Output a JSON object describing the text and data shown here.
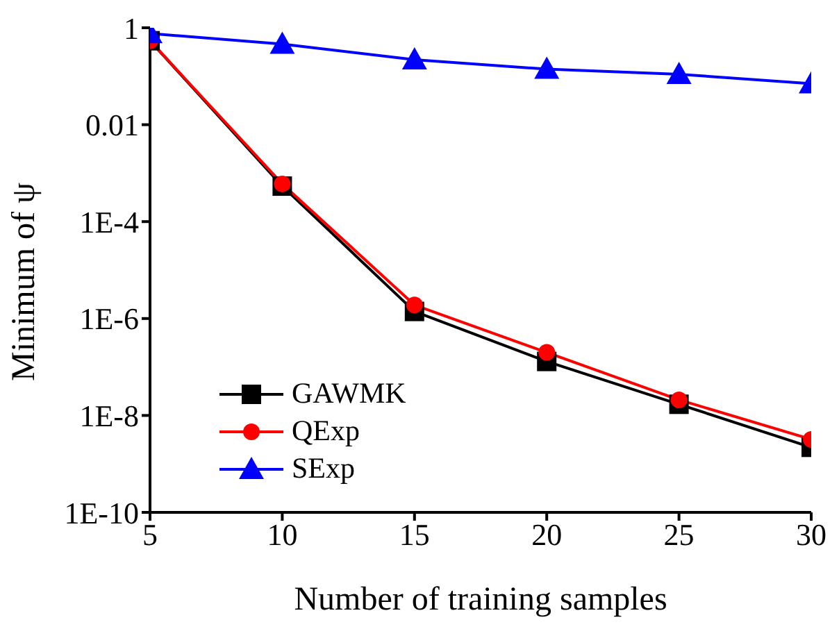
{
  "chart_data": {
    "type": "line",
    "xlabel": "Number of training samples",
    "ylabel": "Minimum of ψ",
    "x": [
      5,
      10,
      15,
      20,
      25,
      30
    ],
    "series": [
      {
        "name": "GAWMK",
        "color": "#000000",
        "marker": "square",
        "values": [
          0.54,
          0.00054,
          1.4e-06,
          1.3e-07,
          1.7e-08,
          2.2e-09
        ]
      },
      {
        "name": "QExp",
        "color": "#ff0000",
        "marker": "circle",
        "values": [
          0.54,
          0.0006,
          1.9e-06,
          2e-07,
          2.1e-08,
          3.2e-09
        ]
      },
      {
        "name": "SExp",
        "color": "#0000ff",
        "marker": "triangle",
        "values": [
          0.76,
          0.46,
          0.22,
          0.14,
          0.11,
          0.07
        ]
      }
    ],
    "log": "y",
    "xlim": [
      5,
      30
    ],
    "xticks": [
      5,
      10,
      15,
      20,
      25,
      30
    ],
    "ylim": [
      1e-10,
      1
    ],
    "yticks": [
      1,
      0.01,
      {
        "value": 0.0001,
        "label": "1E-4"
      },
      {
        "value": 1e-06,
        "label": "1E-6"
      },
      {
        "value": 1e-08,
        "label": "1E-8"
      },
      {
        "value": 1e-10,
        "label": "1E-10"
      }
    ],
    "legend": "bottom left",
    "grid": false
  }
}
